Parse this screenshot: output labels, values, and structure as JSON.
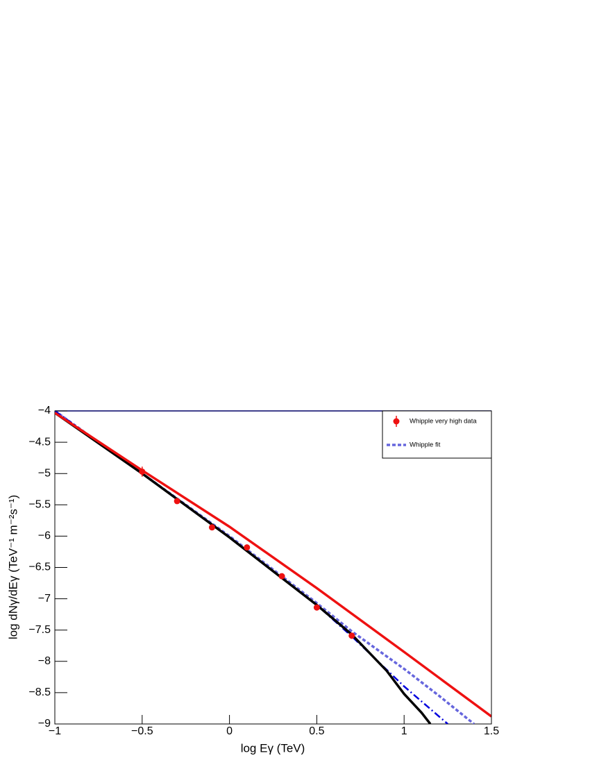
{
  "chart_data": {
    "type": "line",
    "x_label": "log Eγ (TeV)",
    "y_label": "log dNγ/dEγ (TeV⁻¹ m⁻²s⁻¹)",
    "xlim": [
      -1,
      1.5
    ],
    "ylim": [
      -9,
      -4
    ],
    "xticks": [
      {
        "value": -1,
        "label": "−1"
      },
      {
        "value": -0.5,
        "label": "−0.5"
      },
      0,
      0.5,
      1,
      1.5
    ],
    "yticks": [
      {
        "value": -4,
        "label": "−4"
      },
      {
        "value": -4.5,
        "label": "−4.5"
      },
      {
        "value": -5,
        "label": "−5"
      },
      {
        "value": -5.5,
        "label": "−5.5"
      },
      {
        "value": -6,
        "label": "−6"
      },
      {
        "value": -6.5,
        "label": "−6.5"
      },
      {
        "value": -7,
        "label": "−7"
      },
      {
        "value": -7.5,
        "label": "−7.5"
      },
      {
        "value": -8,
        "label": "−8"
      },
      {
        "value": -8.5,
        "label": "−8.5"
      },
      {
        "value": -9,
        "label": "−9"
      }
    ],
    "legend": "upper right",
    "series": [
      {
        "style": "dotted",
        "name": "Whipple fit",
        "color": "#6666dd",
        "x": [
          -1,
          -0.5,
          0,
          0.5,
          0.7,
          1,
          1.2,
          1.4
        ],
        "values": [
          -4.0,
          -5.0,
          -6.0,
          -7.07,
          -7.52,
          -8.12,
          -8.55,
          -9.0
        ]
      },
      {
        "style": "dashdot",
        "color": "#0000dd",
        "x": [
          -1,
          -0.5,
          0,
          0.5,
          0.7,
          1,
          1.25
        ],
        "values": [
          -4.0,
          -5.0,
          -6.02,
          -7.1,
          -7.6,
          -8.4,
          -9.0
        ]
      },
      {
        "style": "solid",
        "color": "#000000",
        "x": [
          -1,
          -0.5,
          0,
          0.5,
          0.7,
          0.9,
          1,
          1.1,
          1.15
        ],
        "values": [
          -4.03,
          -5.0,
          -6.02,
          -7.1,
          -7.57,
          -8.15,
          -8.52,
          -8.82,
          -9.0
        ]
      },
      {
        "style": "solid",
        "color": "#ee1111",
        "x": [
          -1,
          -0.5,
          0,
          0.5,
          1,
          1.5
        ],
        "values": [
          -4.03,
          -4.95,
          -5.85,
          -6.83,
          -7.85,
          -8.88
        ]
      },
      {
        "style": "markers",
        "name": "Whipple very high data",
        "color": "#ee1111",
        "x": [
          -0.5,
          -0.3,
          -0.1,
          0.1,
          0.3,
          0.5,
          0.7
        ],
        "values": [
          -4.97,
          -5.44,
          -5.86,
          -6.18,
          -6.64,
          -7.14,
          -7.59
        ],
        "errors": [
          0.08,
          0.04,
          0.03,
          0.03,
          0.03,
          0.04,
          0.05
        ]
      }
    ]
  }
}
